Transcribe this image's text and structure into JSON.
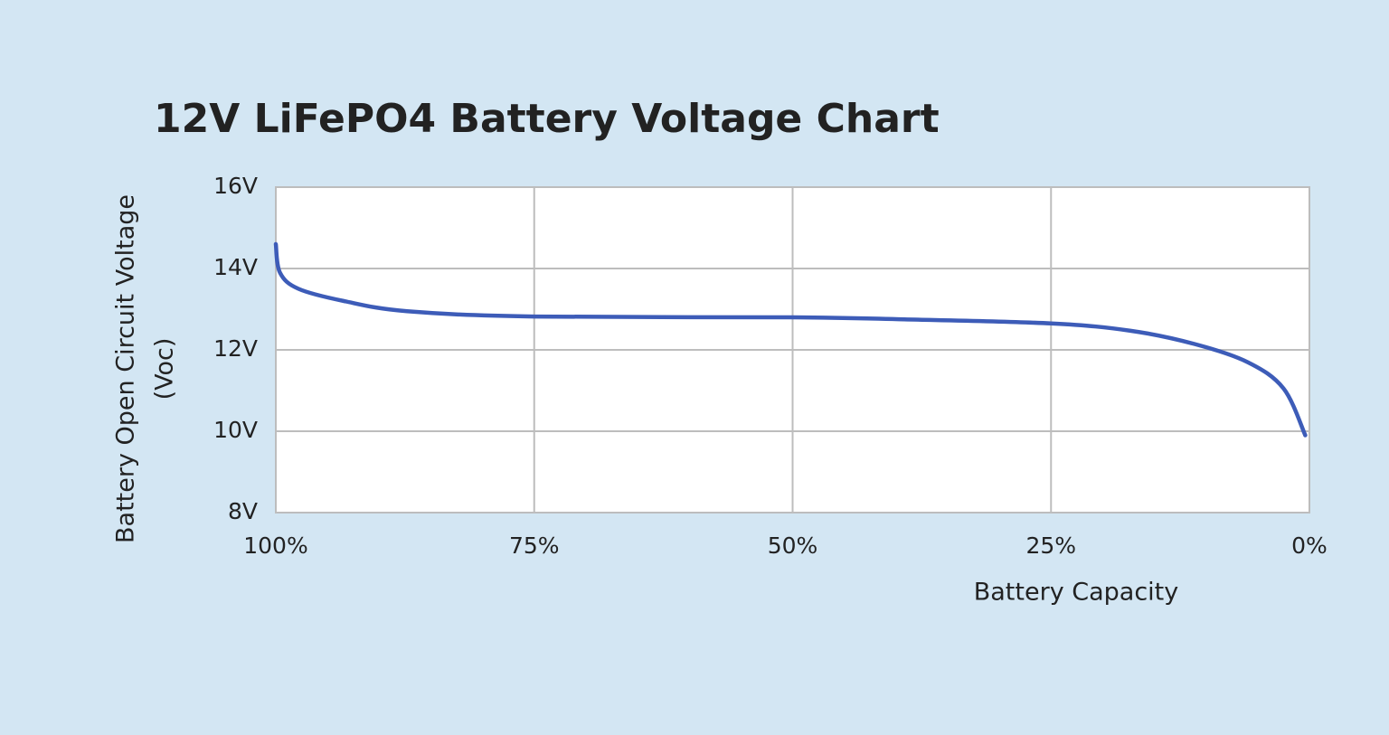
{
  "chart_data": {
    "type": "line",
    "title": "12V LiFePO4 Battery Voltage Chart",
    "x_label": "Battery Capacity",
    "y_label": [
      "Battery Open Circuit Voltage",
      "(Voc)"
    ],
    "x": [
      100,
      99.6,
      97.8,
      93.4,
      87.3,
      75,
      50,
      39.2,
      25,
      17.3,
      11.2,
      6,
      2.5,
      0.4
    ],
    "values": [
      14.6,
      13.9,
      13.5,
      13.2,
      12.95,
      12.82,
      12.8,
      12.75,
      12.65,
      12.47,
      12.15,
      11.7,
      11.05,
      9.9
    ],
    "color": "#3d5cb8",
    "xlim": [
      100,
      0
    ],
    "ylim": [
      8,
      16
    ],
    "xticks": [
      {
        "value": 100,
        "label": "100%"
      },
      {
        "value": 75,
        "label": "75%"
      },
      {
        "value": 50,
        "label": "50%"
      },
      {
        "value": 25,
        "label": "25%"
      },
      {
        "value": 0,
        "label": "0%"
      }
    ],
    "yticks": [
      {
        "value": 8,
        "label": "8V"
      },
      {
        "value": 10,
        "label": "10V"
      },
      {
        "value": 12,
        "label": "12V"
      },
      {
        "value": 14,
        "label": "14V"
      },
      {
        "value": 16,
        "label": "16V"
      }
    ],
    "grid": true
  }
}
